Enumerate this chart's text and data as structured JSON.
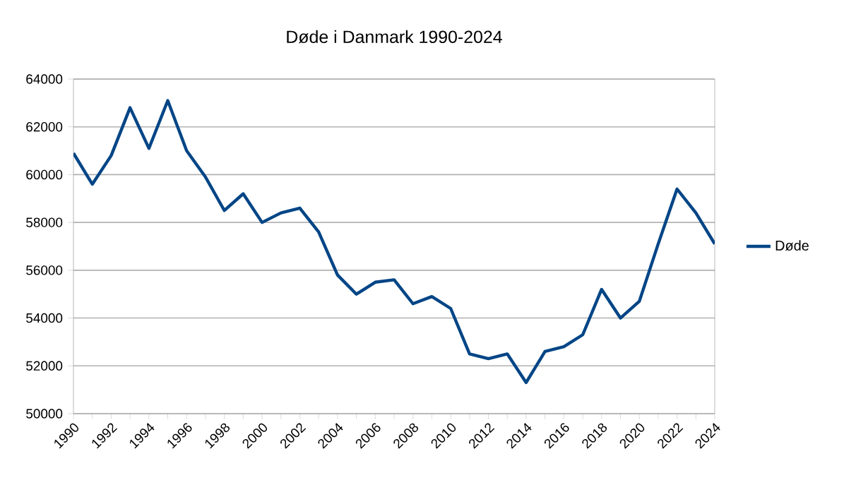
{
  "chart_data": {
    "type": "line",
    "title": "Døde i Danmark 1990-2024",
    "x": [
      1990,
      1991,
      1992,
      1993,
      1994,
      1995,
      1996,
      1997,
      1998,
      1999,
      2000,
      2001,
      2002,
      2003,
      2004,
      2005,
      2006,
      2007,
      2008,
      2009,
      2010,
      2011,
      2012,
      2013,
      2014,
      2015,
      2016,
      2017,
      2018,
      2019,
      2020,
      2021,
      2022,
      2023,
      2024
    ],
    "series": [
      {
        "name": "Døde",
        "color": "#004586",
        "values": [
          60900,
          59600,
          60800,
          62800,
          61100,
          63100,
          61000,
          59900,
          58500,
          59200,
          58000,
          58400,
          58600,
          57600,
          55800,
          55000,
          55500,
          55600,
          54600,
          54900,
          54400,
          52500,
          52300,
          52500,
          51300,
          52600,
          52800,
          53300,
          55200,
          54000,
          54700,
          57100,
          59400,
          58400,
          57100
        ]
      }
    ],
    "xlim": [
      1990,
      2024
    ],
    "xticks": [
      1990,
      {
        "value": 1991,
        "label": null
      },
      1992,
      {
        "value": 1993,
        "label": null
      },
      1994,
      {
        "value": 1995,
        "label": null
      },
      1996,
      {
        "value": 1997,
        "label": null
      },
      1998,
      {
        "value": 1999,
        "label": null
      },
      2000,
      {
        "value": 2001,
        "label": null
      },
      2002,
      {
        "value": 2003,
        "label": null
      },
      2004,
      {
        "value": 2005,
        "label": null
      },
      2006,
      {
        "value": 2007,
        "label": null
      },
      2008,
      {
        "value": 2009,
        "label": null
      },
      2010,
      {
        "value": 2011,
        "label": null
      },
      2012,
      {
        "value": 2013,
        "label": null
      },
      2014,
      {
        "value": 2015,
        "label": null
      },
      2016,
      {
        "value": 2017,
        "label": null
      },
      2018,
      {
        "value": 2019,
        "label": null
      },
      2020,
      {
        "value": 2021,
        "label": null
      },
      2022,
      {
        "value": 2023,
        "label": null
      },
      2024
    ],
    "ylim": [
      50000,
      64000
    ],
    "yticks": [
      50000,
      52000,
      54000,
      56000,
      58000,
      60000,
      62000,
      64000
    ],
    "grid": "y",
    "legend": "right",
    "marker": "none",
    "line_style": "solid"
  }
}
